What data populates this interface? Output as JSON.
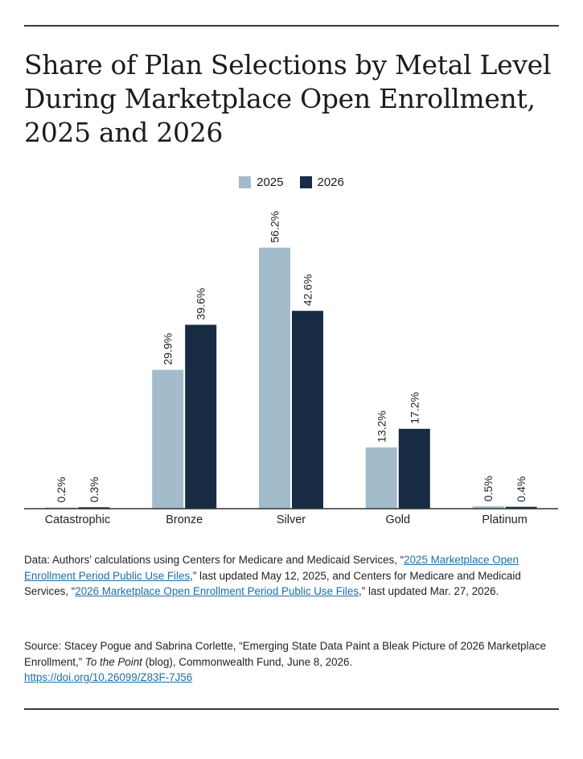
{
  "title_lines": [
    "Share of Plan Selections by Metal Level",
    "During Marketplace Open Enrollment,",
    "2025 and 2026"
  ],
  "colors": {
    "series_2025": "#a3bccb",
    "series_2026": "#172b43",
    "axis": "#333333"
  },
  "chart_data": {
    "type": "bar",
    "categories": [
      "Catastrophic",
      "Bronze",
      "Silver",
      "Gold",
      "Platinum"
    ],
    "series": [
      {
        "name": "2025",
        "values": [
          0.2,
          29.9,
          56.2,
          13.2,
          0.5
        ],
        "labels": [
          "0.2%",
          "29.9%",
          "56.2%",
          "13.2%",
          "0.5%"
        ]
      },
      {
        "name": "2026",
        "values": [
          0.3,
          39.6,
          42.6,
          17.2,
          0.4
        ],
        "labels": [
          "0.3%",
          "39.6%",
          "42.6%",
          "17.2%",
          "0.4%"
        ]
      }
    ],
    "ylim": [
      0,
      60
    ],
    "grid": false,
    "legend_position": "top-center"
  },
  "notes": {
    "data_prefix": "Data: Authors’ calculations using Centers for Medicare and Medicaid Services, “",
    "data_link1": "2025 Marketplace Open Enrollment Period Public Use Files",
    "data_mid": ",” last updated May 12, 2025, and Centers for Medicare and Medicaid Services, “",
    "data_link2": "2026 Marketplace Open Enrollment Period Public Use Files",
    "data_suffix": ",” last updated Mar. 27, 2026.",
    "source_prefix": "Source: Stacey Pogue and Sabrina Corlette, “Emerging State Data Paint a Bleak Picture of 2026 Marketplace Enrollment,” ",
    "source_blog": "To the Point",
    "source_suffix": " (blog), Commonwealth Fund, June 8, 2026.",
    "source_doi": "https://doi.org/10.26099/Z83F-7J56"
  }
}
